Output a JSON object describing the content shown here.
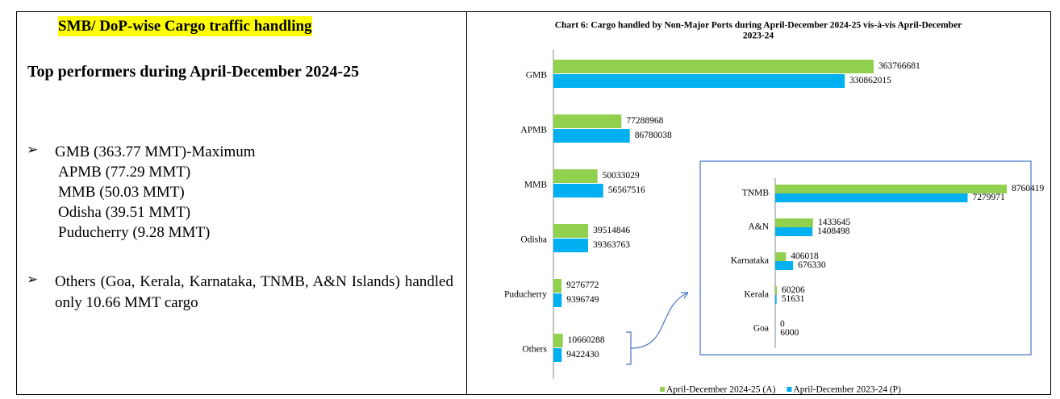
{
  "heading": "SMB/ DoP-wise Cargo traffic handling",
  "subheading": "Top performers during April-December 2024-25",
  "bullets": [
    {
      "lines": [
        "GMB (363.77 MMT)-Maximum",
        "APMB (77.29 MMT)",
        "MMB (50.03 MMT)",
        "Odisha (39.51 MMT)",
        "Puducherry (9.28 MMT)"
      ]
    },
    {
      "lines": [
        "Others (Goa, Kerala, Karnataka, TNMB, A&N Islands) handled only 10.66 MMT cargo"
      ]
    }
  ],
  "chart_data": [
    {
      "type": "bar",
      "horizontal": true,
      "title": "Chart 6: Cargo handled by Non-Major Ports during April-December 2024-25 vis-à-vis April-December 2023-24",
      "categories": [
        "GMB",
        "APMB",
        "MMB",
        "Odisha",
        "Puducherry",
        "Others"
      ],
      "series": [
        {
          "name": "April-December 2024-25 (A)",
          "color": "#92d050",
          "values": [
            363766681,
            77288968,
            50033029,
            39514846,
            9276772,
            10660288
          ]
        },
        {
          "name": "April-December 2023-24 (P)",
          "color": "#00b0f0",
          "values": [
            330862015,
            86780038,
            56567516,
            39363763,
            9396749,
            9422430
          ]
        }
      ],
      "legend": "bottom"
    },
    {
      "type": "bar",
      "horizontal": true,
      "categories": [
        "TNMB",
        "A&N",
        "Karnataka",
        "Kerala",
        "Goa"
      ],
      "series": [
        {
          "color": "#92d050",
          "values": [
            8760419,
            1433645,
            406018,
            60206,
            0
          ]
        },
        {
          "color": "#00b0f0",
          "values": [
            7279971,
            1408498,
            676330,
            51631,
            6000
          ]
        }
      ]
    }
  ]
}
